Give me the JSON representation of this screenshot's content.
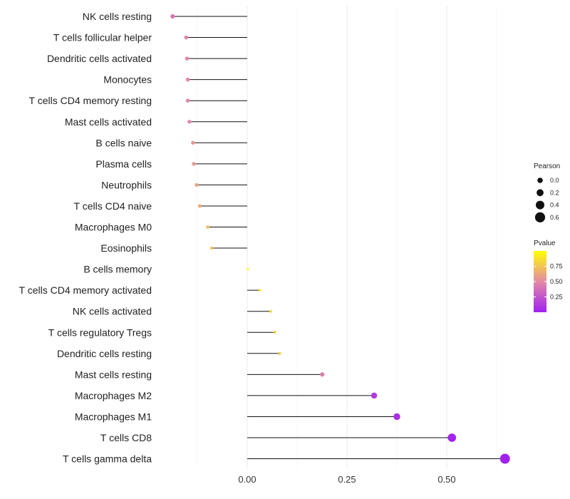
{
  "chart_data": {
    "type": "lollipop",
    "title": "",
    "xlabel": "",
    "ylabel": "",
    "xlim": [
      -0.21,
      0.69
    ],
    "xticks": [
      {
        "value": 0.0,
        "label": "0.00"
      },
      {
        "value": 0.25,
        "label": "0.25"
      },
      {
        "value": 0.5,
        "label": "0.50"
      }
    ],
    "grid": true,
    "categories": [
      "NK cells resting",
      "T cells follicular helper",
      "Dendritic cells activated",
      "Monocytes",
      "T cells CD4 memory resting",
      "Mast cells activated",
      "B cells naive",
      "Plasma cells",
      "Neutrophils",
      "T cells CD4 naive",
      "Macrophages M0",
      "Eosinophils",
      "B cells memory",
      "T cells CD4 memory activated",
      "NK cells activated",
      "T cells regulatory  Tregs",
      "Dendritic cells resting",
      "Mast cells resting",
      "Macrophages M2",
      "Macrophages M1",
      "T cells CD8",
      "T cells gamma delta"
    ],
    "pearson": [
      -0.187,
      -0.153,
      -0.151,
      -0.149,
      -0.149,
      -0.145,
      -0.136,
      -0.134,
      -0.127,
      -0.119,
      -0.099,
      -0.089,
      0.002,
      0.032,
      0.059,
      0.069,
      0.081,
      0.188,
      0.318,
      0.375,
      0.513,
      0.646
    ],
    "pvalue": [
      0.4,
      0.48,
      0.49,
      0.49,
      0.49,
      0.5,
      0.55,
      0.56,
      0.6,
      0.65,
      0.72,
      0.75,
      0.98,
      0.92,
      0.83,
      0.8,
      0.76,
      0.45,
      0.12,
      0.06,
      0.02,
      0.01
    ],
    "legend_size": {
      "title": "Pearson",
      "entries": [
        {
          "value": 0.0,
          "label": "0.0"
        },
        {
          "value": 0.2,
          "label": "0.2"
        },
        {
          "value": 0.4,
          "label": "0.4"
        },
        {
          "value": 0.6,
          "label": "0.6"
        }
      ]
    },
    "legend_color": {
      "title": "Pvalue",
      "range": [
        0.0,
        1.0
      ],
      "ticks": [
        {
          "value": 0.75,
          "label": "0.75"
        },
        {
          "value": 0.5,
          "label": "0.50"
        },
        {
          "value": 0.25,
          "label": "0.25"
        }
      ],
      "low_color": "#a020f0",
      "mid_color": "#e38aa6",
      "high_color": "#ffff00"
    },
    "legend_position": "right"
  }
}
